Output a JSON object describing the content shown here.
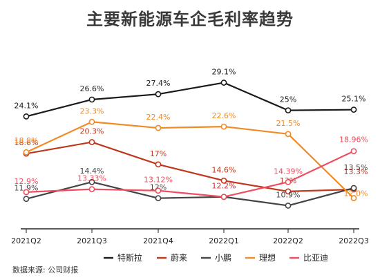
{
  "chart_data": {
    "type": "line",
    "title": "主要新能源车企毛利率趋势",
    "categories": [
      "2021Q2",
      "2021Q3",
      "2021Q4",
      "2022Q1",
      "2022Q2",
      "2022Q3"
    ],
    "series": [
      {
        "name": "特斯拉",
        "color": "#1a1a1a",
        "values": [
          24.1,
          26.6,
          27.4,
          29.1,
          25,
          25.1
        ],
        "labels": [
          "24.1%",
          "26.6%",
          "27.4%",
          "29.1%",
          "25%",
          "25.1%"
        ]
      },
      {
        "name": "蔚来",
        "color": "#c0361c",
        "values": [
          18.6,
          20.3,
          17,
          14.6,
          13,
          13.3
        ],
        "labels": [
          "18.6%",
          "20.3%",
          "17%",
          "14.6%",
          "13%",
          "13.3%"
        ]
      },
      {
        "name": "小鹏",
        "color": "#444444",
        "values": [
          11.9,
          14.4,
          12,
          12.2,
          10.9,
          13.5
        ],
        "labels": [
          "11.9%",
          "14.4%",
          "12%",
          "12.2%",
          "10.9%",
          "13.5%"
        ]
      },
      {
        "name": "理想",
        "color": "#f08a24",
        "values": [
          18.8,
          23.3,
          22.4,
          22.6,
          21.5,
          12.0
        ],
        "labels": [
          "18.8%",
          "23.3%",
          "22.4%",
          "22.6%",
          "21.5%",
          "12.0%"
        ]
      },
      {
        "name": "比亚迪",
        "color": "#ee4d5e",
        "values": [
          12.9,
          13.33,
          13.12,
          12.2,
          14.39,
          18.96
        ],
        "labels": [
          "12.9%",
          "13.33%",
          "13.12%",
          "12.2%",
          "14.39%",
          "18.96%"
        ]
      }
    ],
    "ylim": [
      9,
      31
    ],
    "grid": false,
    "legend_position": "bottom"
  },
  "source_note": "数据来源: 公司财报"
}
